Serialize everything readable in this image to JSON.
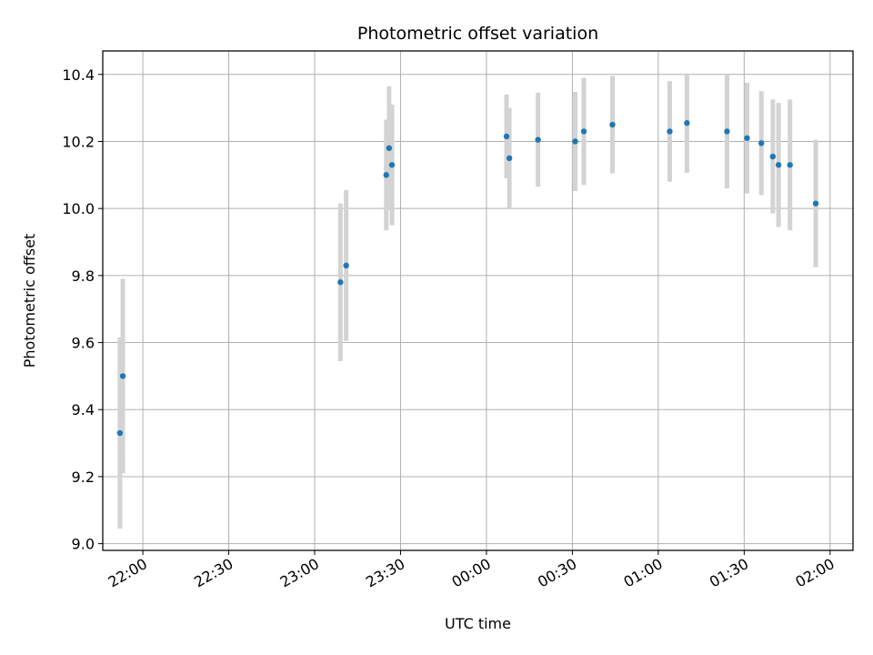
{
  "chart_data": {
    "type": "scatter",
    "title": "Photometric offset variation",
    "xlabel": "UTC time",
    "ylabel": "Photometric offset",
    "x_axis_type": "time",
    "xlim": [
      "21:46",
      "02:08"
    ],
    "ylim": [
      8.98,
      10.47
    ],
    "grid": true,
    "x_ticks": [
      "22:00",
      "22:30",
      "23:00",
      "23:30",
      "00:00",
      "00:30",
      "01:00",
      "01:30",
      "02:00"
    ],
    "y_ticks": [
      "9.0",
      "9.2",
      "9.4",
      "9.6",
      "9.8",
      "10.0",
      "10.2",
      "10.4"
    ],
    "marker_color": "#1f77b4",
    "errorbar_color": "#d3d3d3",
    "series": [
      {
        "points": [
          {
            "x": "21:52",
            "y": 9.33,
            "err": 0.285
          },
          {
            "x": "21:53",
            "y": 9.5,
            "err": 0.29
          },
          {
            "x": "23:09",
            "y": 9.78,
            "err": 0.235
          },
          {
            "x": "23:11",
            "y": 9.83,
            "err": 0.225
          },
          {
            "x": "23:25",
            "y": 10.1,
            "err": 0.165
          },
          {
            "x": "23:26",
            "y": 10.18,
            "err": 0.185
          },
          {
            "x": "23:27",
            "y": 10.13,
            "err": 0.18
          },
          {
            "x": "00:07",
            "y": 10.215,
            "err": 0.125
          },
          {
            "x": "00:08",
            "y": 10.15,
            "err": 0.15
          },
          {
            "x": "00:18",
            "y": 10.205,
            "err": 0.14
          },
          {
            "x": "00:31",
            "y": 10.2,
            "err": 0.148
          },
          {
            "x": "00:34",
            "y": 10.23,
            "err": 0.16
          },
          {
            "x": "00:44",
            "y": 10.25,
            "err": 0.145
          },
          {
            "x": "01:04",
            "y": 10.23,
            "err": 0.15
          },
          {
            "x": "01:10",
            "y": 10.255,
            "err": 0.148
          },
          {
            "x": "01:24",
            "y": 10.23,
            "err": 0.17
          },
          {
            "x": "01:31",
            "y": 10.21,
            "err": 0.165
          },
          {
            "x": "01:36",
            "y": 10.195,
            "err": 0.155
          },
          {
            "x": "01:40",
            "y": 10.155,
            "err": 0.17
          },
          {
            "x": "01:42",
            "y": 10.13,
            "err": 0.185
          },
          {
            "x": "01:46",
            "y": 10.13,
            "err": 0.195
          },
          {
            "x": "01:55",
            "y": 10.015,
            "err": 0.19
          }
        ]
      }
    ]
  }
}
